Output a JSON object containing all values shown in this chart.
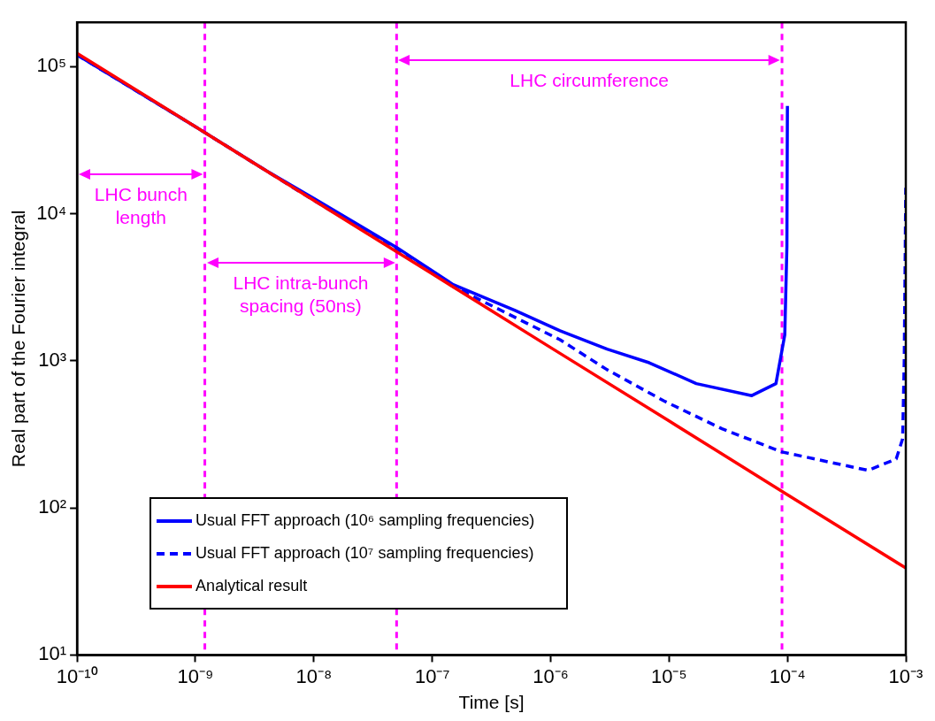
{
  "chart_data": {
    "type": "line",
    "xlabel": "Time [s]",
    "ylabel": "Real part of the Fourier integral",
    "log": "xy",
    "xlim": [
      1e-10,
      0.001
    ],
    "ylim": [
      10,
      200000
    ],
    "xticks": [
      {
        "value": 1e-10,
        "label": "10⁻¹⁰"
      },
      {
        "value": 1e-09,
        "label": "10⁻⁹"
      },
      {
        "value": 1e-08,
        "label": "10⁻⁸"
      },
      {
        "value": 1e-07,
        "label": "10⁻⁷"
      },
      {
        "value": 1e-06,
        "label": "10⁻⁶"
      },
      {
        "value": 1e-05,
        "label": "10⁻⁵"
      },
      {
        "value": 0.0001,
        "label": "10⁻⁴"
      },
      {
        "value": 0.001,
        "label": "10⁻³"
      }
    ],
    "yticks": [
      {
        "value": 10,
        "label": "10¹"
      },
      {
        "value": 100,
        "label": "10²"
      },
      {
        "value": 1000,
        "label": "10³"
      },
      {
        "value": 10000,
        "label": "10⁴"
      },
      {
        "value": 100000,
        "label": "10⁵"
      }
    ],
    "grid": false,
    "legend": "bottom left",
    "marker": "none",
    "series": [
      {
        "name": "Usual FFT approach (10⁶ sampling frequencies)",
        "color": "#0000ff",
        "line_style": "solid",
        "x": [
          1e-10,
          1e-09,
          4e-09,
          1e-08,
          5e-08,
          1.5e-07,
          5e-07,
          1.2e-06,
          3e-06,
          6.8e-06,
          1.7e-05,
          5e-05,
          8e-05,
          9.5e-05,
          9.9e-05,
          0.0001
        ],
        "values": [
          120000,
          39000,
          19500,
          12700,
          5900,
          3300,
          2200,
          1600,
          1200,
          970,
          700,
          580,
          700,
          1500,
          6000,
          54000
        ]
      },
      {
        "name": "Usual FFT approach (10⁷ sampling frequencies)",
        "color": "#0000ff",
        "line_style": "dashed",
        "x": [
          1e-10,
          1e-09,
          1e-08,
          5e-08,
          1.5e-07,
          1.2e-06,
          3e-06,
          9e-06,
          2.8e-05,
          9e-05,
          0.00048,
          0.00083,
          0.00094,
          0.00097,
          0.001
        ],
        "values": [
          120000,
          39000,
          12300,
          5700,
          3200,
          1390,
          870,
          535,
          345,
          240,
          180,
          215,
          295,
          1000,
          15000
        ]
      },
      {
        "name": "Analytical result",
        "color": "#ff0000",
        "line_style": "solid",
        "x": [
          1e-10,
          1e-09,
          1e-08,
          1e-07,
          1e-06,
          1e-05,
          0.0001,
          0.001
        ],
        "values": [
          123000,
          39000,
          12300,
          3900,
          1230,
          390,
          123,
          39
        ]
      }
    ],
    "ref_lines": [
      {
        "axis": "x",
        "value": 1.2e-09,
        "color": "#ff00ff",
        "line_style": "dashed"
      },
      {
        "axis": "x",
        "value": 5e-08,
        "color": "#ff00ff",
        "line_style": "dashed"
      },
      {
        "axis": "x",
        "value": 9e-05,
        "color": "#ff00ff",
        "line_style": "dashed"
      }
    ],
    "annotations": [
      "LHC bunch length",
      "LHC intra-bunch spacing (50ns)",
      "LHC circumference"
    ]
  }
}
